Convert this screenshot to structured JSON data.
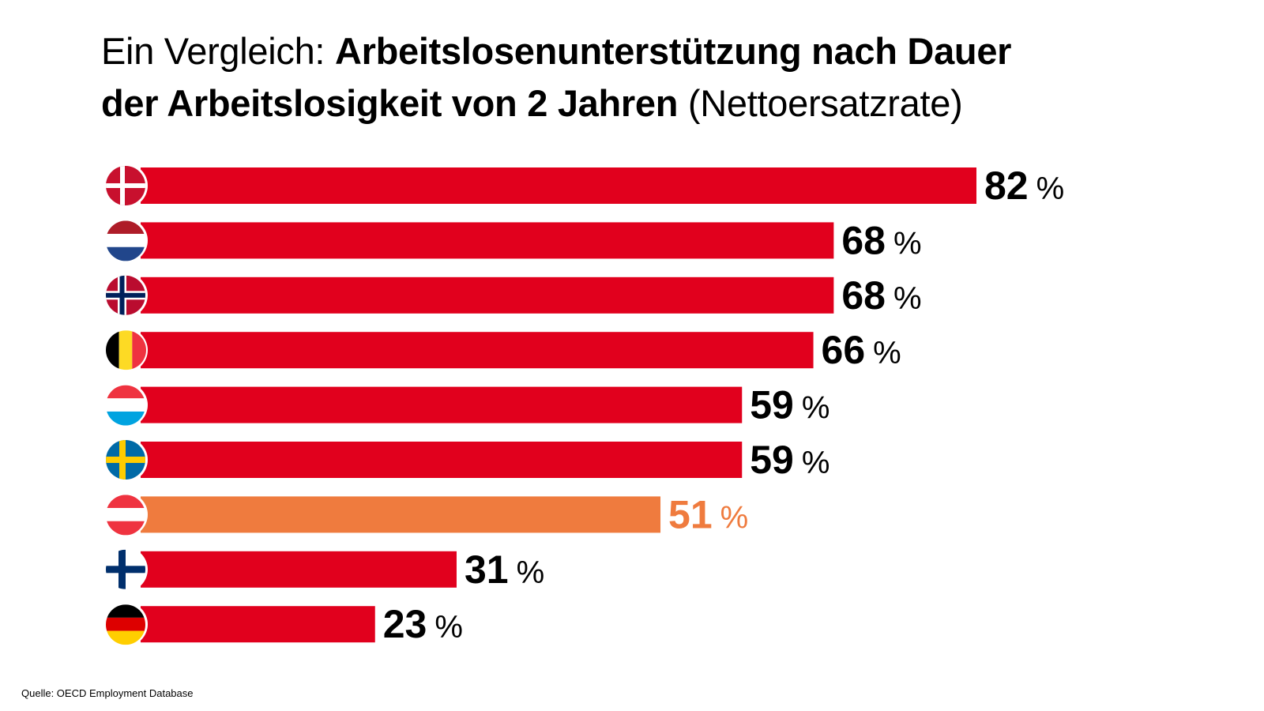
{
  "chart_data": {
    "type": "bar",
    "orientation": "horizontal",
    "title": {
      "prefix": "Ein Vergleich: ",
      "bold_line1": "Arbeitslosenunterstützung nach Dauer",
      "bold_line2": "der Arbeitslosigkeit von 2 Jahren",
      "suffix": " (Nettoersatzrate)"
    },
    "unit": "%",
    "xlim": [
      0,
      82
    ],
    "categories": [
      "Dänemark",
      "Niederlande",
      "Norwegen",
      "Belgien",
      "Luxemburg",
      "Schweden",
      "Österreich",
      "Finnland",
      "Deutschland"
    ],
    "flag_icons": [
      "denmark-flag-icon",
      "netherlands-flag-icon",
      "norway-flag-icon",
      "belgium-flag-icon",
      "luxembourg-flag-icon",
      "sweden-flag-icon",
      "austria-flag-icon",
      "finland-flag-icon",
      "germany-flag-icon"
    ],
    "values": [
      82,
      68,
      68,
      66,
      59,
      59,
      51,
      31,
      23
    ],
    "labels": [
      "82",
      "68",
      "68",
      "66",
      "59",
      "59",
      "51",
      "31",
      "23"
    ],
    "highlight": "Österreich",
    "source": "Quelle: OECD Employment Database"
  },
  "colors": {
    "bar": "#e1001d",
    "highlight": "#ef7b3e",
    "label": "#000000"
  }
}
